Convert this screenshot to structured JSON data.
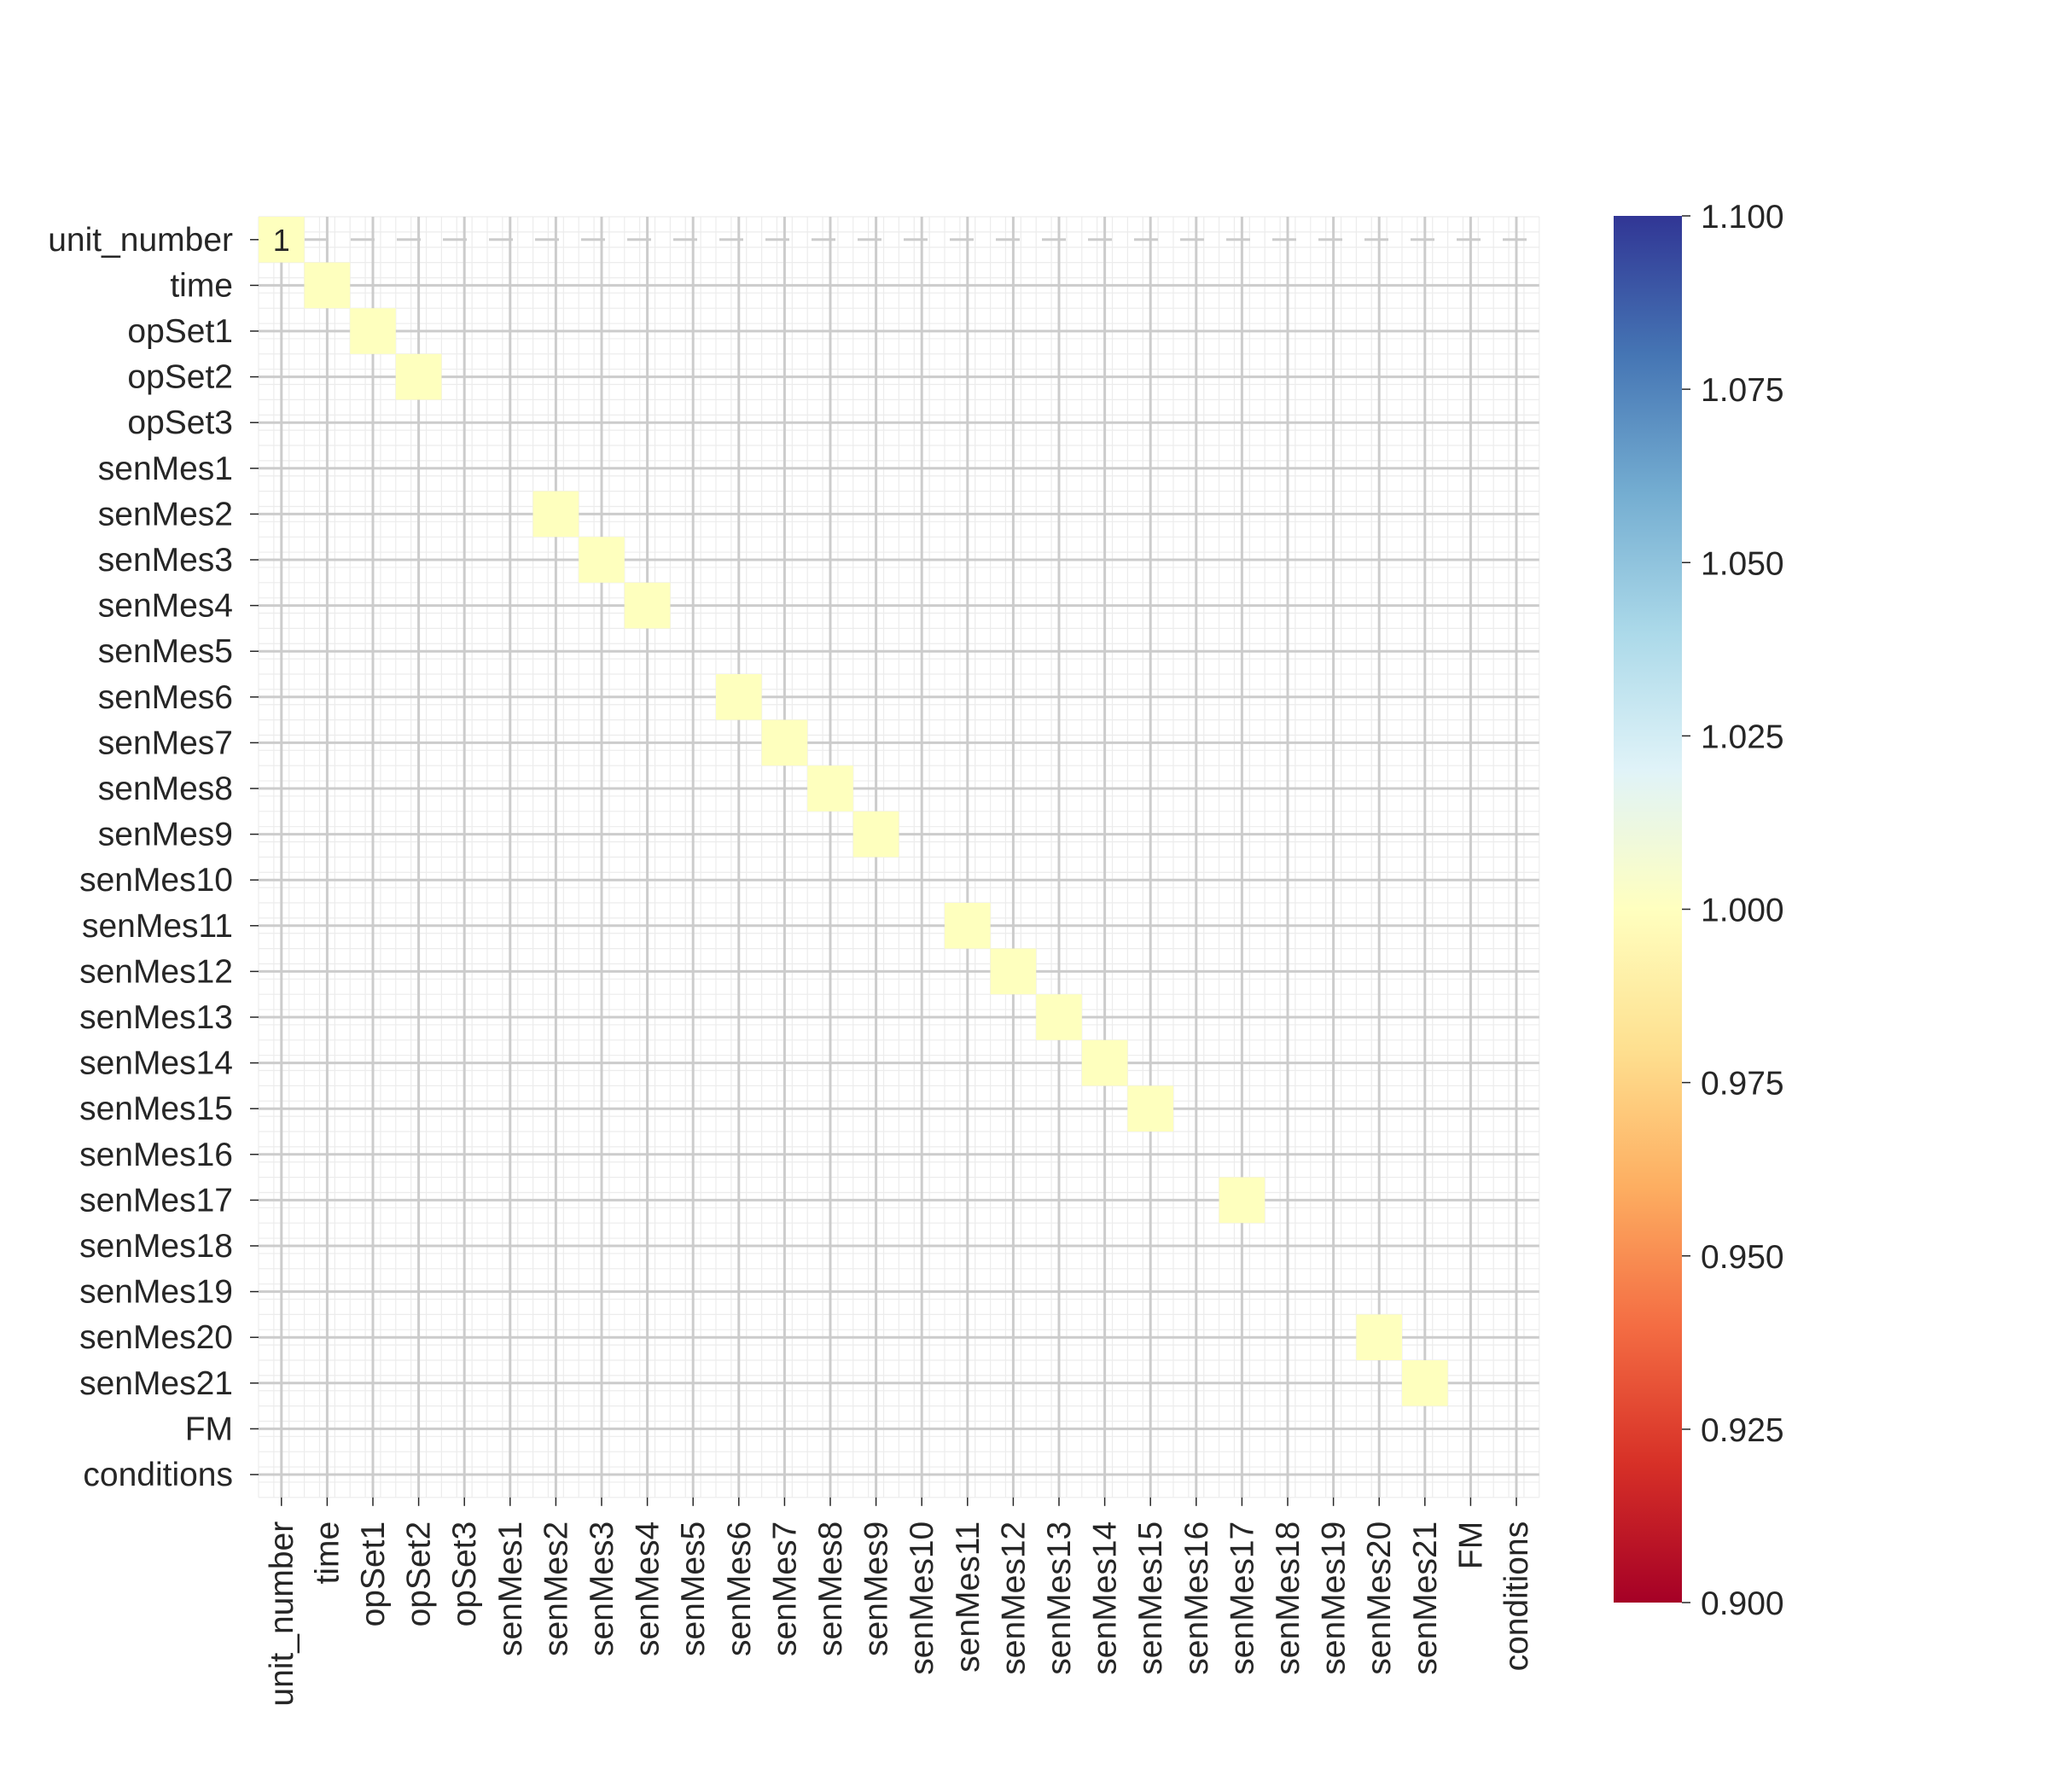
{
  "chart_data": {
    "type": "heatmap",
    "title": "",
    "xlabel": "",
    "ylabel": "",
    "rows": [
      "unit_number",
      "time",
      "opSet1",
      "opSet2",
      "opSet3",
      "senMes1",
      "senMes2",
      "senMes3",
      "senMes4",
      "senMes5",
      "senMes6",
      "senMes7",
      "senMes8",
      "senMes9",
      "senMes10",
      "senMes11",
      "senMes12",
      "senMes13",
      "senMes14",
      "senMes15",
      "senMes16",
      "senMes17",
      "senMes18",
      "senMes19",
      "senMes20",
      "senMes21",
      "FM",
      "conditions"
    ],
    "columns": [
      "unit_number",
      "time",
      "opSet1",
      "opSet2",
      "opSet3",
      "senMes1",
      "senMes2",
      "senMes3",
      "senMes4",
      "senMes5",
      "senMes6",
      "senMes7",
      "senMes8",
      "senMes9",
      "senMes10",
      "senMes11",
      "senMes12",
      "senMes13",
      "senMes14",
      "senMes15",
      "senMes16",
      "senMes17",
      "senMes18",
      "senMes19",
      "senMes20",
      "senMes21",
      "FM",
      "conditions"
    ],
    "cells": [
      {
        "row": "unit_number",
        "col": "unit_number",
        "value": 1,
        "label": "1"
      },
      {
        "row": "time",
        "col": "time",
        "value": 1
      },
      {
        "row": "opSet1",
        "col": "opSet1",
        "value": 1
      },
      {
        "row": "opSet2",
        "col": "opSet2",
        "value": 1
      },
      {
        "row": "senMes2",
        "col": "senMes2",
        "value": 1
      },
      {
        "row": "senMes3",
        "col": "senMes3",
        "value": 1
      },
      {
        "row": "senMes4",
        "col": "senMes4",
        "value": 1
      },
      {
        "row": "senMes6",
        "col": "senMes6",
        "value": 1
      },
      {
        "row": "senMes7",
        "col": "senMes7",
        "value": 1
      },
      {
        "row": "senMes8",
        "col": "senMes8",
        "value": 1
      },
      {
        "row": "senMes9",
        "col": "senMes9",
        "value": 1
      },
      {
        "row": "senMes11",
        "col": "senMes11",
        "value": 1
      },
      {
        "row": "senMes12",
        "col": "senMes12",
        "value": 1
      },
      {
        "row": "senMes13",
        "col": "senMes13",
        "value": 1
      },
      {
        "row": "senMes14",
        "col": "senMes14",
        "value": 1
      },
      {
        "row": "senMes15",
        "col": "senMes15",
        "value": 1
      },
      {
        "row": "senMes17",
        "col": "senMes17",
        "value": 1
      },
      {
        "row": "senMes20",
        "col": "senMes20",
        "value": 1
      },
      {
        "row": "senMes21",
        "col": "senMes21",
        "value": 1
      }
    ],
    "cell_color": "#feffbe",
    "colorbar": {
      "min": 0.9,
      "max": 1.1,
      "ticks": [
        0.9,
        0.925,
        0.95,
        0.975,
        1.0,
        1.025,
        1.05,
        1.075,
        1.1
      ],
      "tick_labels": [
        "0.900",
        "0.925",
        "0.950",
        "0.975",
        "1.000",
        "1.025",
        "1.050",
        "1.075",
        "1.100"
      ],
      "colormap": "RdYlBu",
      "colors": [
        "#a50026",
        "#d73027",
        "#f46d43",
        "#fdae61",
        "#fee090",
        "#ffffbf",
        "#e0f3f8",
        "#abd9e9",
        "#74add1",
        "#4575b4",
        "#313695"
      ]
    },
    "grid": true,
    "grid_color": "#cccccc"
  }
}
